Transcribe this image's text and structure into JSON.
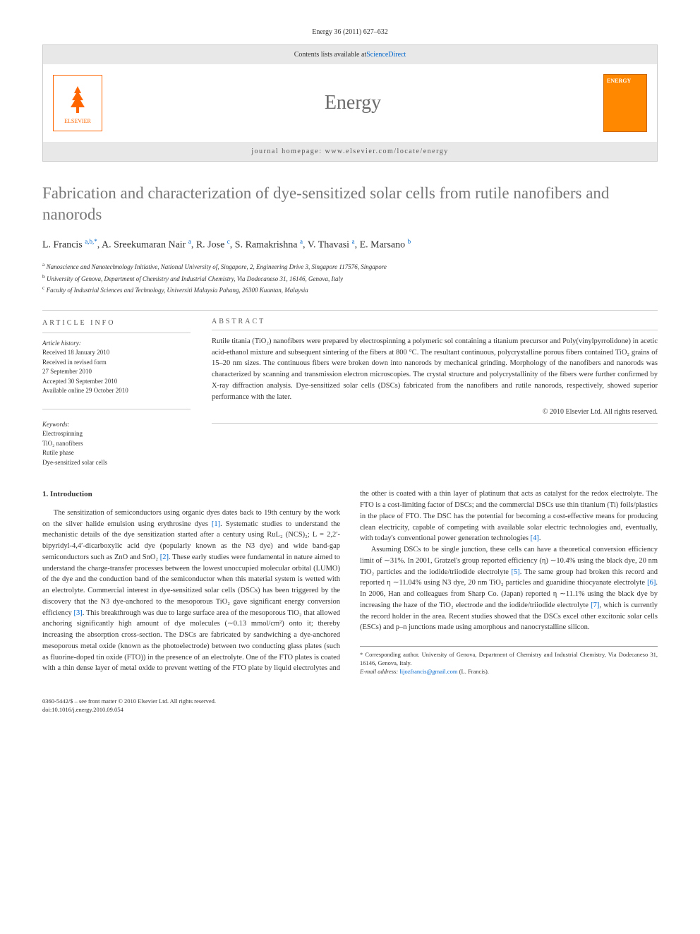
{
  "citation": "Energy 36 (2011) 627–632",
  "header": {
    "contents_prefix": "Contents lists available at ",
    "contents_link": "ScienceDirect",
    "journal_name": "Energy",
    "homepage_prefix": "journal homepage: ",
    "homepage_url": "www.elsevier.com/locate/energy",
    "logo_label": "ELSEVIER",
    "cover_label": "ENERGY"
  },
  "title": "Fabrication and characterization of dye-sensitized solar cells from rutile nanofibers and nanorods",
  "authors_html": "L. Francis <sup>a,b,*</sup>, A. Sreekumaran Nair <sup>a</sup>, R. Jose <sup>c</sup>, S. Ramakrishna <sup>a</sup>, V. Thavasi <sup>a</sup>, E. Marsano <sup>b</sup>",
  "affiliations": [
    {
      "sup": "a",
      "text": "Nanoscience and Nanotechnology Initiative, National University of, Singapore, 2, Engineering Drive 3, Singapore 117576, Singapore"
    },
    {
      "sup": "b",
      "text": "University of Genova, Department of Chemistry and Industrial Chemistry, Via Dodecaneso 31, 16146, Genova, Italy"
    },
    {
      "sup": "c",
      "text": "Faculty of Industrial Sciences and Technology, Universiti Malaysia Pahang, 26300 Kuantan, Malaysia"
    }
  ],
  "info_label": "ARTICLE INFO",
  "abstract_label": "ABSTRACT",
  "history": {
    "label": "Article history:",
    "received": "Received 18 January 2010",
    "revised1": "Received in revised form",
    "revised2": "27 September 2010",
    "accepted": "Accepted 30 September 2010",
    "online": "Available online 29 October 2010"
  },
  "keywords": {
    "label": "Keywords:",
    "items": [
      "Electrospinning",
      "TiO₂ nanofibers",
      "Rutile phase",
      "Dye-sensitized solar cells"
    ]
  },
  "abstract_text": "Rutile titania (TiO₂) nanofibers were prepared by electrospinning a polymeric sol containing a titanium precursor and Poly(vinylpyrrolidone) in acetic acid-ethanol mixture and subsequent sintering of the fibers at 800 °C. The resultant continuous, polycrystalline porous fibers contained TiO₂ grains of 15–20 nm sizes. The continuous fibers were broken down into nanorods by mechanical grinding. Morphology of the nanofibers and nanorods was characterized by scanning and transmission electron microscopies. The crystal structure and polycrystallinity of the fibers were further confirmed by X-ray diffraction analysis. Dye-sensitized solar cells (DSCs) fabricated from the nanofibers and rutile nanorods, respectively, showed superior performance with the later.",
  "copyright": "© 2010 Elsevier Ltd. All rights reserved.",
  "intro_heading": "1. Introduction",
  "paragraphs": [
    "The sensitization of semiconductors using organic dyes dates back to 19th century by the work on the silver halide emulsion using erythrosine dyes [1]. Systematic studies to understand the mechanistic details of the dye sensitization started after a century using RuL₂ (NCS)₂; L = 2,2′-bipyridyl-4,4′-dicarboxylic acid dye (popularly known as the N3 dye) and wide band-gap semiconductors such as ZnO and SnO₂ [2]. These early studies were fundamental in nature aimed to understand the charge-transfer processes between the lowest unoccupied molecular orbital (LUMO) of the dye and the conduction band of the semiconductor when this material system is wetted with an electrolyte. Commercial interest in dye-sensitized solar cells (DSCs) has been triggered by the discovery that the N3 dye-anchored to the mesoporous TiO₂ gave significant energy conversion efficiency [3]. This breakthrough was due to large surface area of the mesoporous TiO₂ that allowed anchoring significantly high amount of dye molecules (∼0.13 mmol/cm²) onto it; thereby increasing the absorption cross-section. The DSCs are fabricated by sandwiching a dye-anchored mesoporous metal oxide (known as the photoelectrode) between two conducting glass plates (such as fluorine-doped tin oxide (FTO)) in the presence of an electrolyte. One of the FTO plates is coated with a thin dense layer of metal oxide to prevent wetting of the FTO plate by liquid electrolytes and the other is coated with a thin layer of platinum that acts as catalyst for the redox electrolyte. The FTO is a cost-limiting factor of DSCs; and the commercial DSCs use thin titanium (Ti) foils/plastics in the place of FTO. The DSC has the potential for becoming a cost-effective means for producing clean electricity, capable of competing with available solar electric technologies and, eventually, with today's conventional power generation technologies [4].",
    "Assuming DSCs to be single junction, these cells can have a theoretical conversion efficiency limit of ∼31%. In 2001, Gratzel's group reported efficiency (η) ∼10.4% using the black dye, 20 nm TiO₂ particles and the iodide/triiodide electrolyte [5]. The same group had broken this record and reported η ∼11.04% using N3 dye, 20 nm TiO₂ particles and guanidine thiocyanate electrolyte [6]. In 2006, Han and colleagues from Sharp Co. (Japan) reported η ∼11.1% using the black dye by increasing the haze of the TiO₂ electrode and the iodide/triiodide electrolyte [7], which is currently the record holder in the area. Recent studies showed that the DSCs excel other excitonic solar cells (ESCs) and p–n junctions made using amorphous and nanocrystalline silicon."
  ],
  "footnote": {
    "corresponding": "* Corresponding author. University of Genova, Department of Chemistry and Industrial Chemistry, Via Dodecaneso 31, 16146, Genova, Italy.",
    "email_label": "E-mail address: ",
    "email": "lijozfrancis@gmail.com",
    "email_suffix": " (L. Francis)."
  },
  "footer": {
    "line1": "0360-5442/$ – see front matter © 2010 Elsevier Ltd. All rights reserved.",
    "line2": "doi:10.1016/j.energy.2010.09.054"
  },
  "colors": {
    "link": "#0066cc",
    "title_gray": "#777777",
    "header_gray": "#6b6b6b",
    "box_bg": "#e8e8e8",
    "orange": "#ff8800"
  },
  "fonts": {
    "body_family": "Georgia, 'Times New Roman', serif",
    "title_size_pt": 17,
    "body_size_pt": 8,
    "abstract_size_pt": 8
  }
}
